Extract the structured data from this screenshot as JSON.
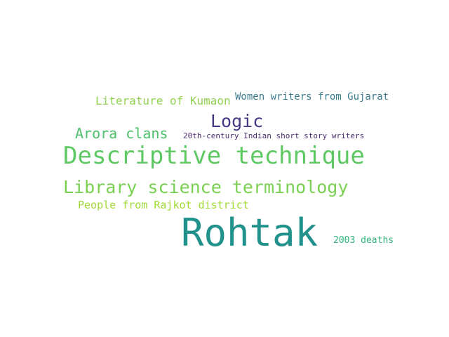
{
  "words": [
    {
      "key": "literature",
      "text": "Literature of Kumaon",
      "color": "#94d254"
    },
    {
      "key": "women",
      "text": "Women writers from Gujarat",
      "color": "#3b7c8e"
    },
    {
      "key": "logic",
      "text": "Logic",
      "color": "#443a83"
    },
    {
      "key": "arora",
      "text": "Arora clans",
      "color": "#4cbf6b"
    },
    {
      "key": "20th",
      "text": "20th-century Indian short story writers",
      "color": "#4a2a6e"
    },
    {
      "key": "descriptive",
      "text": "Descriptive technique",
      "color": "#5ec962"
    },
    {
      "key": "library",
      "text": "Library science terminology",
      "color": "#7ad151"
    },
    {
      "key": "people",
      "text": "People from Rajkot district",
      "color": "#a2da37"
    },
    {
      "key": "rohtak",
      "text": "Rohtak",
      "color": "#21918c"
    },
    {
      "key": "2003",
      "text": "2003 deaths",
      "color": "#2fb47c"
    }
  ]
}
